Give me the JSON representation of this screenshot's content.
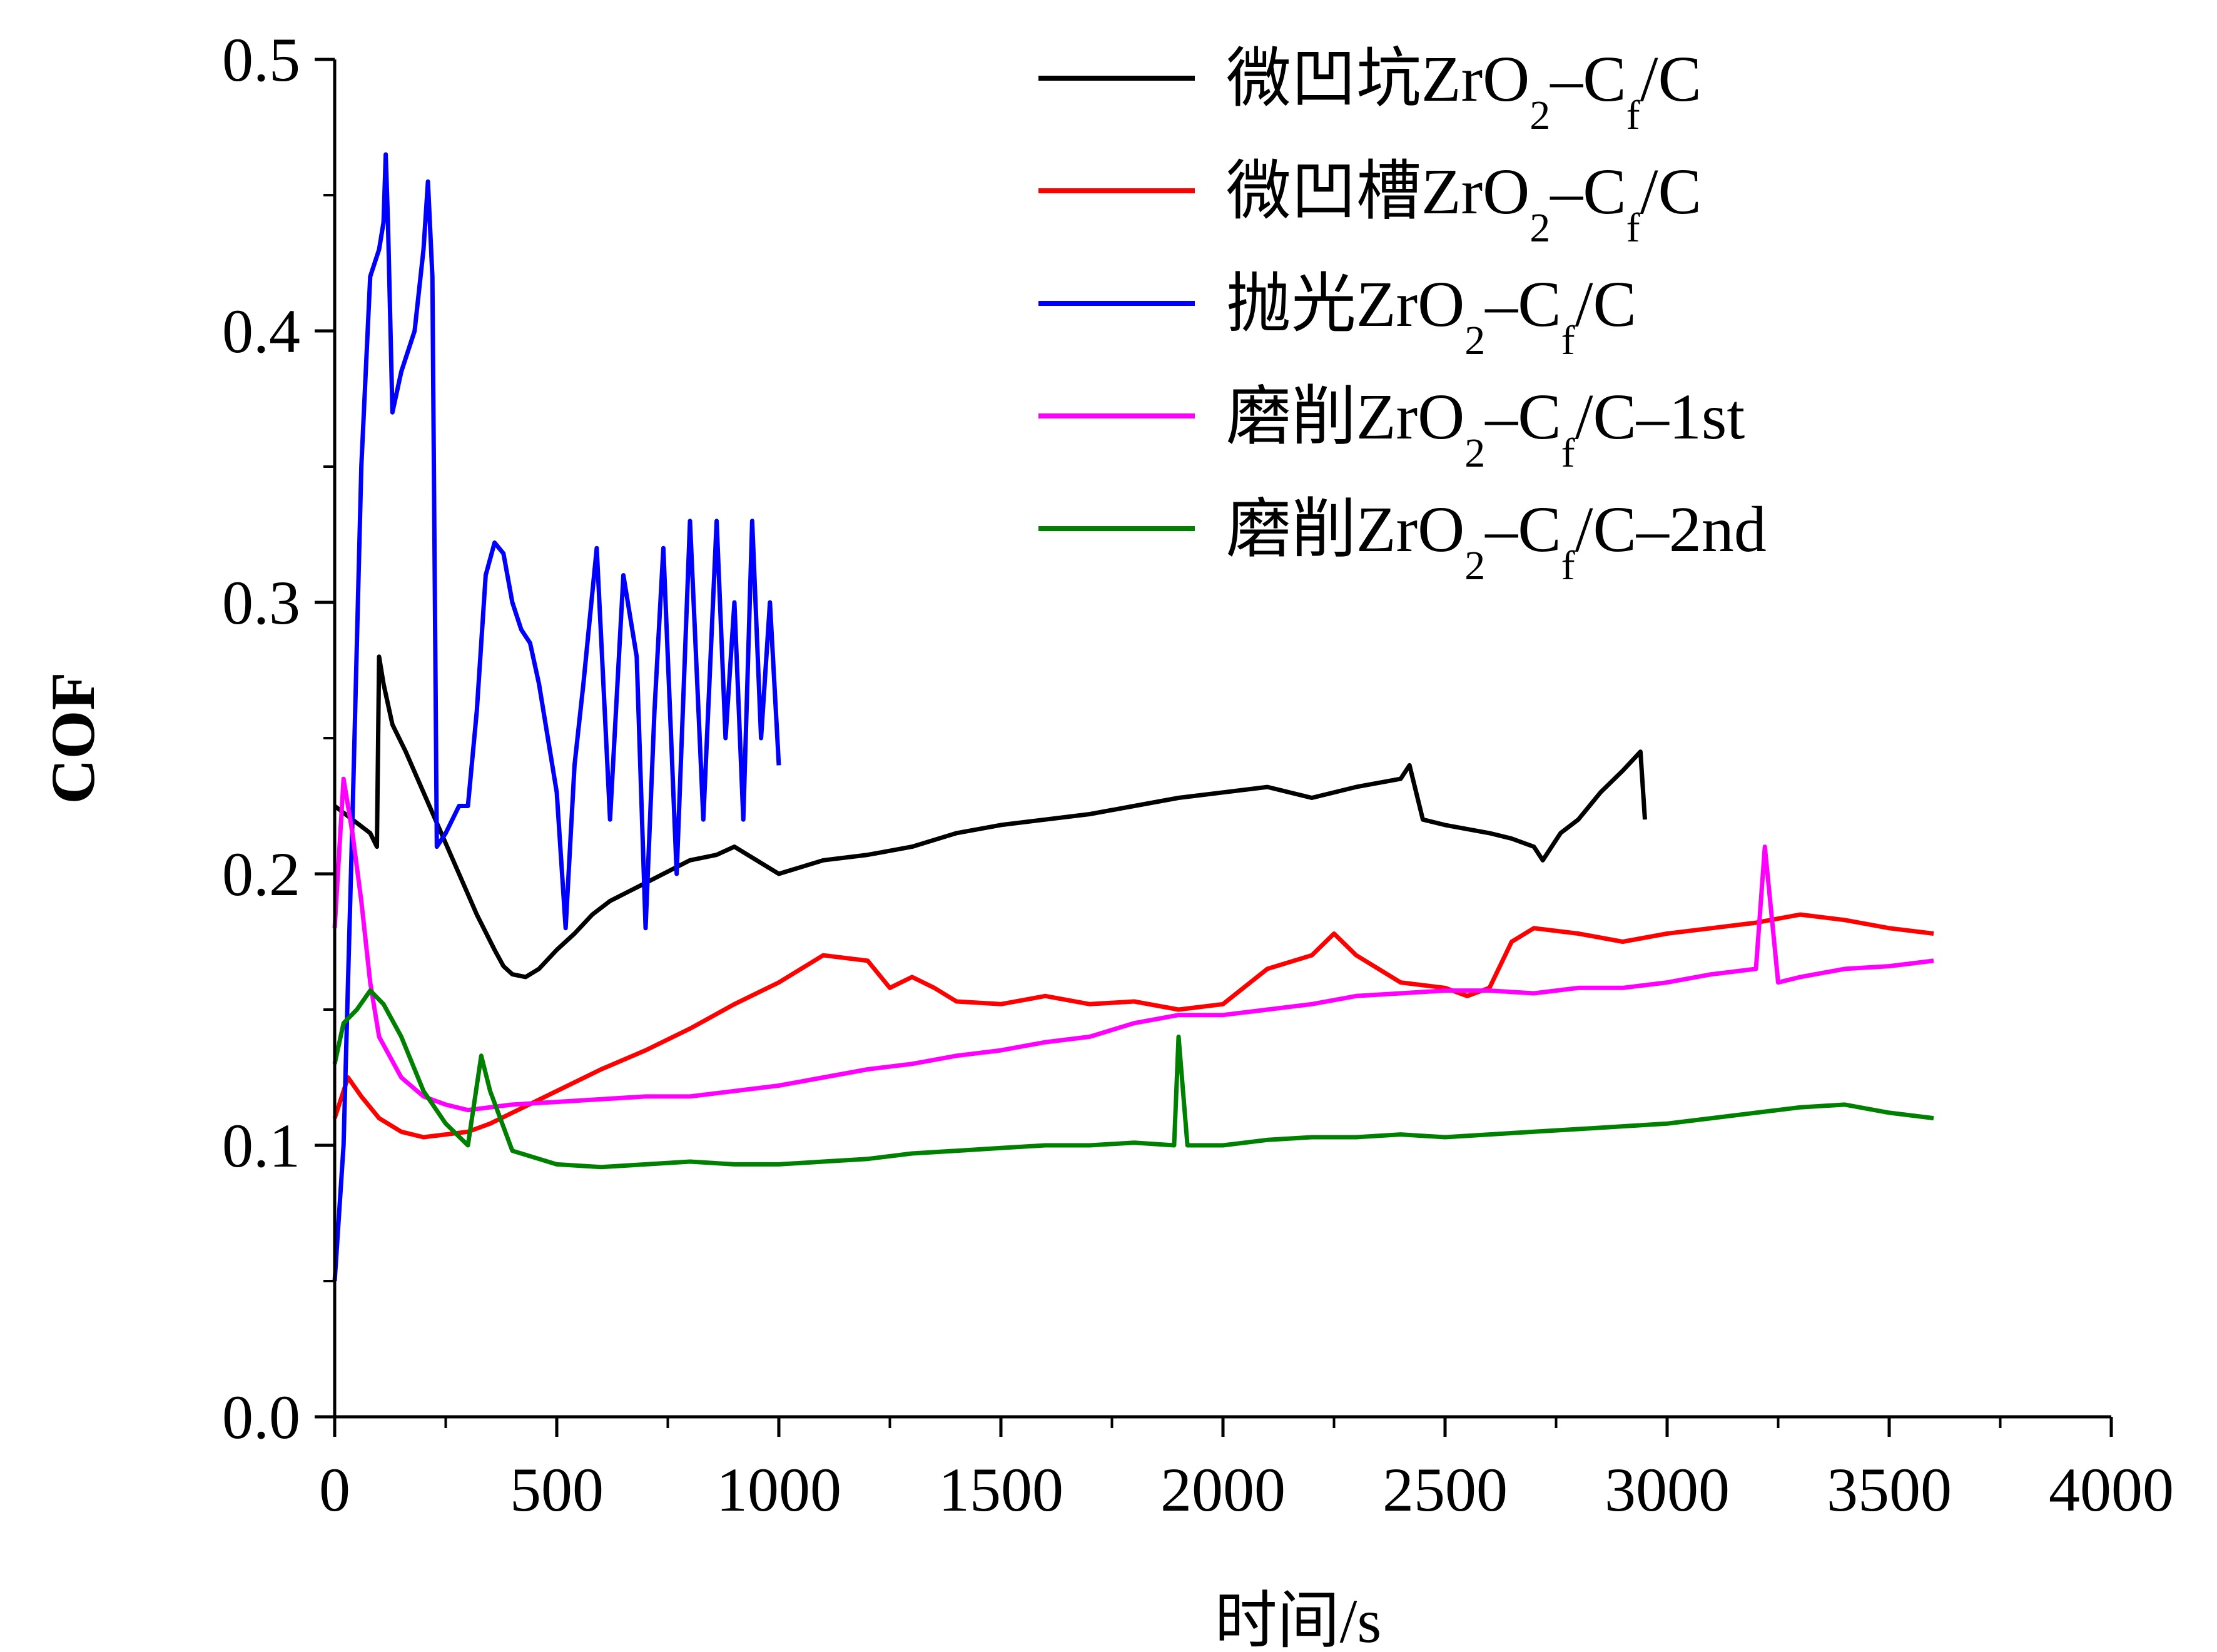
{
  "chart_data": {
    "type": "line",
    "xlabel": "时间/s",
    "ylabel": "COF",
    "xlim": [
      0,
      4000
    ],
    "ylim": [
      0,
      0.5
    ],
    "x_ticks": [
      "0",
      "500",
      "1000",
      "1500",
      "2000",
      "2500",
      "3000",
      "3500",
      "4000"
    ],
    "y_ticks": [
      "0.0",
      "0.1",
      "0.2",
      "0.3",
      "0.4",
      "0.5"
    ],
    "grid": false,
    "legend_position": "top-right",
    "series": [
      {
        "name": "微凹坑ZrO2–Cf/C",
        "legend": {
          "pre": "微凹坑ZrO",
          "sub1": "2",
          "mid": "–C",
          "sub2": "f",
          "post": "/C"
        },
        "color": "#000000",
        "points": [
          [
            0,
            0.225
          ],
          [
            40,
            0.22
          ],
          [
            80,
            0.215
          ],
          [
            95,
            0.21
          ],
          [
            100,
            0.28
          ],
          [
            110,
            0.27
          ],
          [
            130,
            0.255
          ],
          [
            160,
            0.245
          ],
          [
            200,
            0.23
          ],
          [
            240,
            0.215
          ],
          [
            280,
            0.2
          ],
          [
            320,
            0.185
          ],
          [
            360,
            0.172
          ],
          [
            380,
            0.166
          ],
          [
            400,
            0.163
          ],
          [
            430,
            0.162
          ],
          [
            460,
            0.165
          ],
          [
            500,
            0.172
          ],
          [
            540,
            0.178
          ],
          [
            580,
            0.185
          ],
          [
            620,
            0.19
          ],
          [
            680,
            0.195
          ],
          [
            740,
            0.2
          ],
          [
            800,
            0.205
          ],
          [
            860,
            0.207
          ],
          [
            900,
            0.21
          ],
          [
            1000,
            0.2
          ],
          [
            1100,
            0.205
          ],
          [
            1200,
            0.207
          ],
          [
            1300,
            0.21
          ],
          [
            1400,
            0.215
          ],
          [
            1500,
            0.218
          ],
          [
            1600,
            0.22
          ],
          [
            1700,
            0.222
          ],
          [
            1800,
            0.225
          ],
          [
            1900,
            0.228
          ],
          [
            2000,
            0.23
          ],
          [
            2100,
            0.232
          ],
          [
            2200,
            0.228
          ],
          [
            2300,
            0.232
          ],
          [
            2400,
            0.235
          ],
          [
            2420,
            0.24
          ],
          [
            2450,
            0.22
          ],
          [
            2500,
            0.218
          ],
          [
            2600,
            0.215
          ],
          [
            2650,
            0.213
          ],
          [
            2700,
            0.21
          ],
          [
            2720,
            0.205
          ],
          [
            2760,
            0.215
          ],
          [
            2800,
            0.22
          ],
          [
            2850,
            0.23
          ],
          [
            2900,
            0.238
          ],
          [
            2940,
            0.245
          ],
          [
            2950,
            0.22
          ]
        ]
      },
      {
        "name": "微凹槽ZrO2–Cf/C",
        "legend": {
          "pre": "微凹槽ZrO",
          "sub1": "2",
          "mid": "–C",
          "sub2": "f",
          "post": "/C"
        },
        "color": "#ff0000",
        "points": [
          [
            0,
            0.11
          ],
          [
            30,
            0.125
          ],
          [
            60,
            0.118
          ],
          [
            100,
            0.11
          ],
          [
            150,
            0.105
          ],
          [
            200,
            0.103
          ],
          [
            300,
            0.105
          ],
          [
            350,
            0.108
          ],
          [
            400,
            0.112
          ],
          [
            500,
            0.12
          ],
          [
            600,
            0.128
          ],
          [
            700,
            0.135
          ],
          [
            800,
            0.143
          ],
          [
            900,
            0.152
          ],
          [
            1000,
            0.16
          ],
          [
            1050,
            0.165
          ],
          [
            1100,
            0.17
          ],
          [
            1200,
            0.168
          ],
          [
            1250,
            0.158
          ],
          [
            1300,
            0.162
          ],
          [
            1350,
            0.158
          ],
          [
            1400,
            0.153
          ],
          [
            1500,
            0.152
          ],
          [
            1600,
            0.155
          ],
          [
            1700,
            0.152
          ],
          [
            1800,
            0.153
          ],
          [
            1900,
            0.15
          ],
          [
            2000,
            0.152
          ],
          [
            2100,
            0.165
          ],
          [
            2200,
            0.17
          ],
          [
            2250,
            0.178
          ],
          [
            2300,
            0.17
          ],
          [
            2350,
            0.165
          ],
          [
            2400,
            0.16
          ],
          [
            2500,
            0.158
          ],
          [
            2550,
            0.155
          ],
          [
            2600,
            0.158
          ],
          [
            2650,
            0.175
          ],
          [
            2700,
            0.18
          ],
          [
            2800,
            0.178
          ],
          [
            2900,
            0.175
          ],
          [
            3000,
            0.178
          ],
          [
            3100,
            0.18
          ],
          [
            3200,
            0.182
          ],
          [
            3300,
            0.185
          ],
          [
            3400,
            0.183
          ],
          [
            3500,
            0.18
          ],
          [
            3600,
            0.178
          ]
        ]
      },
      {
        "name": "抛光ZrO2–Cf/C",
        "legend": {
          "pre": "抛光ZrO",
          "sub1": "2",
          "mid": "–C",
          "sub2": "f",
          "post": "/C"
        },
        "color": "#0000ff",
        "points": [
          [
            0,
            0.05
          ],
          [
            20,
            0.1
          ],
          [
            40,
            0.22
          ],
          [
            60,
            0.35
          ],
          [
            80,
            0.42
          ],
          [
            100,
            0.43
          ],
          [
            110,
            0.44
          ],
          [
            115,
            0.465
          ],
          [
            120,
            0.44
          ],
          [
            130,
            0.37
          ],
          [
            150,
            0.385
          ],
          [
            180,
            0.4
          ],
          [
            200,
            0.43
          ],
          [
            210,
            0.455
          ],
          [
            220,
            0.42
          ],
          [
            230,
            0.21
          ],
          [
            250,
            0.215
          ],
          [
            280,
            0.225
          ],
          [
            300,
            0.225
          ],
          [
            320,
            0.26
          ],
          [
            340,
            0.31
          ],
          [
            360,
            0.322
          ],
          [
            380,
            0.318
          ],
          [
            400,
            0.3
          ],
          [
            420,
            0.29
          ],
          [
            440,
            0.285
          ],
          [
            460,
            0.27
          ],
          [
            480,
            0.25
          ],
          [
            500,
            0.23
          ],
          [
            520,
            0.18
          ],
          [
            540,
            0.24
          ],
          [
            560,
            0.27
          ],
          [
            590,
            0.32
          ],
          [
            620,
            0.22
          ],
          [
            650,
            0.31
          ],
          [
            680,
            0.28
          ],
          [
            700,
            0.18
          ],
          [
            720,
            0.26
          ],
          [
            740,
            0.32
          ],
          [
            770,
            0.2
          ],
          [
            800,
            0.33
          ],
          [
            830,
            0.22
          ],
          [
            860,
            0.33
          ],
          [
            880,
            0.25
          ],
          [
            900,
            0.3
          ],
          [
            920,
            0.22
          ],
          [
            940,
            0.33
          ],
          [
            960,
            0.25
          ],
          [
            980,
            0.3
          ],
          [
            1000,
            0.24
          ]
        ]
      },
      {
        "name": "磨削ZrO2–Cf/C–1st",
        "legend": {
          "pre": "磨削ZrO",
          "sub1": "2",
          "mid": "–C",
          "sub2": "f",
          "post": "/C–1st"
        },
        "color": "#ff00ff",
        "points": [
          [
            0,
            0.18
          ],
          [
            20,
            0.235
          ],
          [
            40,
            0.215
          ],
          [
            60,
            0.19
          ],
          [
            80,
            0.16
          ],
          [
            100,
            0.14
          ],
          [
            150,
            0.125
          ],
          [
            200,
            0.118
          ],
          [
            250,
            0.115
          ],
          [
            300,
            0.113
          ],
          [
            400,
            0.115
          ],
          [
            500,
            0.116
          ],
          [
            600,
            0.117
          ],
          [
            700,
            0.118
          ],
          [
            800,
            0.118
          ],
          [
            900,
            0.12
          ],
          [
            1000,
            0.122
          ],
          [
            1100,
            0.125
          ],
          [
            1200,
            0.128
          ],
          [
            1300,
            0.13
          ],
          [
            1400,
            0.133
          ],
          [
            1500,
            0.135
          ],
          [
            1600,
            0.138
          ],
          [
            1700,
            0.14
          ],
          [
            1800,
            0.145
          ],
          [
            1900,
            0.148
          ],
          [
            2000,
            0.148
          ],
          [
            2100,
            0.15
          ],
          [
            2200,
            0.152
          ],
          [
            2300,
            0.155
          ],
          [
            2400,
            0.156
          ],
          [
            2500,
            0.157
          ],
          [
            2600,
            0.157
          ],
          [
            2700,
            0.156
          ],
          [
            2800,
            0.158
          ],
          [
            2900,
            0.158
          ],
          [
            3000,
            0.16
          ],
          [
            3100,
            0.163
          ],
          [
            3200,
            0.165
          ],
          [
            3220,
            0.21
          ],
          [
            3250,
            0.16
          ],
          [
            3300,
            0.162
          ],
          [
            3400,
            0.165
          ],
          [
            3500,
            0.166
          ],
          [
            3600,
            0.168
          ]
        ]
      },
      {
        "name": "磨削ZrO2–Cf/C–2nd",
        "legend": {
          "pre": "磨削ZrO",
          "sub1": "2",
          "mid": "–C",
          "sub2": "f",
          "post": "/C–2nd"
        },
        "color": "#008000",
        "points": [
          [
            0,
            0.13
          ],
          [
            20,
            0.145
          ],
          [
            50,
            0.15
          ],
          [
            80,
            0.157
          ],
          [
            110,
            0.152
          ],
          [
            150,
            0.14
          ],
          [
            200,
            0.12
          ],
          [
            250,
            0.108
          ],
          [
            300,
            0.1
          ],
          [
            330,
            0.133
          ],
          [
            350,
            0.12
          ],
          [
            400,
            0.098
          ],
          [
            500,
            0.093
          ],
          [
            600,
            0.092
          ],
          [
            700,
            0.093
          ],
          [
            800,
            0.094
          ],
          [
            900,
            0.093
          ],
          [
            1000,
            0.093
          ],
          [
            1100,
            0.094
          ],
          [
            1200,
            0.095
          ],
          [
            1300,
            0.097
          ],
          [
            1400,
            0.098
          ],
          [
            1500,
            0.099
          ],
          [
            1600,
            0.1
          ],
          [
            1700,
            0.1
          ],
          [
            1800,
            0.101
          ],
          [
            1890,
            0.1
          ],
          [
            1900,
            0.14
          ],
          [
            1920,
            0.1
          ],
          [
            2000,
            0.1
          ],
          [
            2100,
            0.102
          ],
          [
            2200,
            0.103
          ],
          [
            2300,
            0.103
          ],
          [
            2400,
            0.104
          ],
          [
            2500,
            0.103
          ],
          [
            2600,
            0.104
          ],
          [
            2700,
            0.105
          ],
          [
            2800,
            0.106
          ],
          [
            2900,
            0.107
          ],
          [
            3000,
            0.108
          ],
          [
            3100,
            0.11
          ],
          [
            3200,
            0.112
          ],
          [
            3300,
            0.114
          ],
          [
            3400,
            0.115
          ],
          [
            3500,
            0.112
          ],
          [
            3600,
            0.11
          ]
        ]
      }
    ]
  }
}
